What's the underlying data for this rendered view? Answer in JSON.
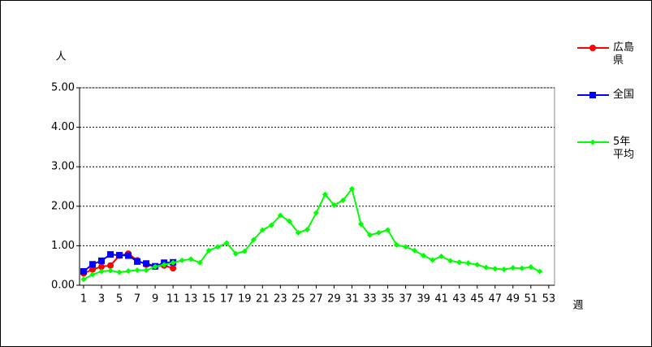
{
  "chart_data": {
    "type": "line",
    "y_label": "人",
    "x_label": "週",
    "x": [
      1,
      2,
      3,
      4,
      5,
      6,
      7,
      8,
      9,
      10,
      11,
      12,
      13,
      14,
      15,
      16,
      17,
      18,
      19,
      20,
      21,
      22,
      23,
      24,
      25,
      26,
      27,
      28,
      29,
      30,
      31,
      32,
      33,
      34,
      35,
      36,
      37,
      38,
      39,
      40,
      41,
      42,
      43,
      44,
      45,
      46,
      47,
      48,
      49,
      50,
      51,
      52,
      53
    ],
    "xlim": [
      0.55,
      53.65
    ],
    "xticks": [
      1,
      3,
      5,
      7,
      9,
      11,
      13,
      15,
      17,
      19,
      21,
      23,
      25,
      27,
      29,
      31,
      33,
      35,
      37,
      39,
      41,
      43,
      45,
      47,
      49,
      51,
      53
    ],
    "ylim": [
      0,
      5
    ],
    "yticks": [
      {
        "value": 0,
        "label": "0.00"
      },
      {
        "value": 1,
        "label": "1.00"
      },
      {
        "value": 2,
        "label": "2.00"
      },
      {
        "value": 3,
        "label": "3.00"
      },
      {
        "value": 4,
        "label": "4.00"
      },
      {
        "value": 5,
        "label": "5.00"
      }
    ],
    "grid": true,
    "legend": "right",
    "series": [
      {
        "name": "広島県",
        "color": "#ff0000",
        "marker": "circle",
        "values": [
          0.3,
          0.4,
          0.47,
          0.5,
          0.75,
          0.8,
          0.63,
          0.52,
          0.47,
          0.5,
          0.43,
          null,
          null,
          null,
          null,
          null,
          null,
          null,
          null,
          null,
          null,
          null,
          null,
          null,
          null,
          null,
          null,
          null,
          null,
          null,
          null,
          null,
          null,
          null,
          null,
          null,
          null,
          null,
          null,
          null,
          null,
          null,
          null,
          null,
          null,
          null,
          null,
          null,
          null,
          null,
          null,
          null,
          null
        ]
      },
      {
        "name": "全国",
        "color": "#0000ff",
        "marker": "square",
        "values": [
          0.35,
          0.53,
          0.62,
          0.78,
          0.76,
          0.75,
          0.6,
          0.55,
          0.48,
          0.57,
          0.58,
          null,
          null,
          null,
          null,
          null,
          null,
          null,
          null,
          null,
          null,
          null,
          null,
          null,
          null,
          null,
          null,
          null,
          null,
          null,
          null,
          null,
          null,
          null,
          null,
          null,
          null,
          null,
          null,
          null,
          null,
          null,
          null,
          null,
          null,
          null,
          null,
          null,
          null,
          null,
          null,
          null,
          null
        ]
      },
      {
        "name": "5年平均",
        "color": "#00ff00",
        "marker": "diamond",
        "values": [
          0.15,
          0.27,
          0.35,
          0.37,
          0.33,
          0.36,
          0.38,
          0.38,
          0.47,
          0.52,
          0.57,
          0.63,
          0.66,
          0.57,
          0.88,
          0.97,
          1.07,
          0.8,
          0.86,
          1.15,
          1.4,
          1.52,
          1.77,
          1.62,
          1.33,
          1.41,
          1.83,
          2.3,
          2.03,
          2.15,
          2.44,
          1.55,
          1.27,
          1.33,
          1.4,
          1.02,
          0.97,
          0.88,
          0.75,
          0.64,
          0.73,
          0.62,
          0.58,
          0.56,
          0.52,
          0.45,
          0.42,
          0.4,
          0.44,
          0.43,
          0.46,
          0.35,
          null
        ]
      }
    ]
  }
}
